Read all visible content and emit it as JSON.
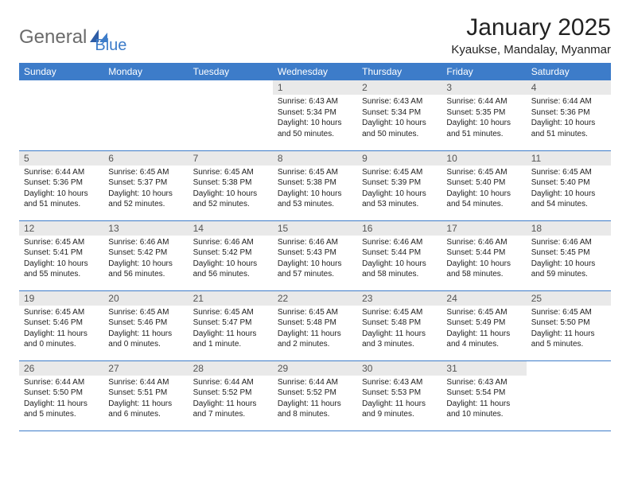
{
  "logo": {
    "part1": "General",
    "part2": "Blue"
  },
  "title": "January 2025",
  "location": "Kyaukse, Mandalay, Myanmar",
  "colors": {
    "header_bg": "#3d7cc9",
    "header_text": "#ffffff",
    "daynum_bg": "#e9e9e9",
    "row_border": "#3d7cc9",
    "logo_gray": "#6b6b6b",
    "logo_blue": "#3d7cc9"
  },
  "weekdays": [
    "Sunday",
    "Monday",
    "Tuesday",
    "Wednesday",
    "Thursday",
    "Friday",
    "Saturday"
  ],
  "weeks": [
    [
      {
        "n": "",
        "l1": "",
        "l2": "",
        "l3": "",
        "l4": ""
      },
      {
        "n": "",
        "l1": "",
        "l2": "",
        "l3": "",
        "l4": ""
      },
      {
        "n": "",
        "l1": "",
        "l2": "",
        "l3": "",
        "l4": ""
      },
      {
        "n": "1",
        "l1": "Sunrise: 6:43 AM",
        "l2": "Sunset: 5:34 PM",
        "l3": "Daylight: 10 hours",
        "l4": "and 50 minutes."
      },
      {
        "n": "2",
        "l1": "Sunrise: 6:43 AM",
        "l2": "Sunset: 5:34 PM",
        "l3": "Daylight: 10 hours",
        "l4": "and 50 minutes."
      },
      {
        "n": "3",
        "l1": "Sunrise: 6:44 AM",
        "l2": "Sunset: 5:35 PM",
        "l3": "Daylight: 10 hours",
        "l4": "and 51 minutes."
      },
      {
        "n": "4",
        "l1": "Sunrise: 6:44 AM",
        "l2": "Sunset: 5:36 PM",
        "l3": "Daylight: 10 hours",
        "l4": "and 51 minutes."
      }
    ],
    [
      {
        "n": "5",
        "l1": "Sunrise: 6:44 AM",
        "l2": "Sunset: 5:36 PM",
        "l3": "Daylight: 10 hours",
        "l4": "and 51 minutes."
      },
      {
        "n": "6",
        "l1": "Sunrise: 6:45 AM",
        "l2": "Sunset: 5:37 PM",
        "l3": "Daylight: 10 hours",
        "l4": "and 52 minutes."
      },
      {
        "n": "7",
        "l1": "Sunrise: 6:45 AM",
        "l2": "Sunset: 5:38 PM",
        "l3": "Daylight: 10 hours",
        "l4": "and 52 minutes."
      },
      {
        "n": "8",
        "l1": "Sunrise: 6:45 AM",
        "l2": "Sunset: 5:38 PM",
        "l3": "Daylight: 10 hours",
        "l4": "and 53 minutes."
      },
      {
        "n": "9",
        "l1": "Sunrise: 6:45 AM",
        "l2": "Sunset: 5:39 PM",
        "l3": "Daylight: 10 hours",
        "l4": "and 53 minutes."
      },
      {
        "n": "10",
        "l1": "Sunrise: 6:45 AM",
        "l2": "Sunset: 5:40 PM",
        "l3": "Daylight: 10 hours",
        "l4": "and 54 minutes."
      },
      {
        "n": "11",
        "l1": "Sunrise: 6:45 AM",
        "l2": "Sunset: 5:40 PM",
        "l3": "Daylight: 10 hours",
        "l4": "and 54 minutes."
      }
    ],
    [
      {
        "n": "12",
        "l1": "Sunrise: 6:45 AM",
        "l2": "Sunset: 5:41 PM",
        "l3": "Daylight: 10 hours",
        "l4": "and 55 minutes."
      },
      {
        "n": "13",
        "l1": "Sunrise: 6:46 AM",
        "l2": "Sunset: 5:42 PM",
        "l3": "Daylight: 10 hours",
        "l4": "and 56 minutes."
      },
      {
        "n": "14",
        "l1": "Sunrise: 6:46 AM",
        "l2": "Sunset: 5:42 PM",
        "l3": "Daylight: 10 hours",
        "l4": "and 56 minutes."
      },
      {
        "n": "15",
        "l1": "Sunrise: 6:46 AM",
        "l2": "Sunset: 5:43 PM",
        "l3": "Daylight: 10 hours",
        "l4": "and 57 minutes."
      },
      {
        "n": "16",
        "l1": "Sunrise: 6:46 AM",
        "l2": "Sunset: 5:44 PM",
        "l3": "Daylight: 10 hours",
        "l4": "and 58 minutes."
      },
      {
        "n": "17",
        "l1": "Sunrise: 6:46 AM",
        "l2": "Sunset: 5:44 PM",
        "l3": "Daylight: 10 hours",
        "l4": "and 58 minutes."
      },
      {
        "n": "18",
        "l1": "Sunrise: 6:46 AM",
        "l2": "Sunset: 5:45 PM",
        "l3": "Daylight: 10 hours",
        "l4": "and 59 minutes."
      }
    ],
    [
      {
        "n": "19",
        "l1": "Sunrise: 6:45 AM",
        "l2": "Sunset: 5:46 PM",
        "l3": "Daylight: 11 hours",
        "l4": "and 0 minutes."
      },
      {
        "n": "20",
        "l1": "Sunrise: 6:45 AM",
        "l2": "Sunset: 5:46 PM",
        "l3": "Daylight: 11 hours",
        "l4": "and 0 minutes."
      },
      {
        "n": "21",
        "l1": "Sunrise: 6:45 AM",
        "l2": "Sunset: 5:47 PM",
        "l3": "Daylight: 11 hours",
        "l4": "and 1 minute."
      },
      {
        "n": "22",
        "l1": "Sunrise: 6:45 AM",
        "l2": "Sunset: 5:48 PM",
        "l3": "Daylight: 11 hours",
        "l4": "and 2 minutes."
      },
      {
        "n": "23",
        "l1": "Sunrise: 6:45 AM",
        "l2": "Sunset: 5:48 PM",
        "l3": "Daylight: 11 hours",
        "l4": "and 3 minutes."
      },
      {
        "n": "24",
        "l1": "Sunrise: 6:45 AM",
        "l2": "Sunset: 5:49 PM",
        "l3": "Daylight: 11 hours",
        "l4": "and 4 minutes."
      },
      {
        "n": "25",
        "l1": "Sunrise: 6:45 AM",
        "l2": "Sunset: 5:50 PM",
        "l3": "Daylight: 11 hours",
        "l4": "and 5 minutes."
      }
    ],
    [
      {
        "n": "26",
        "l1": "Sunrise: 6:44 AM",
        "l2": "Sunset: 5:50 PM",
        "l3": "Daylight: 11 hours",
        "l4": "and 5 minutes."
      },
      {
        "n": "27",
        "l1": "Sunrise: 6:44 AM",
        "l2": "Sunset: 5:51 PM",
        "l3": "Daylight: 11 hours",
        "l4": "and 6 minutes."
      },
      {
        "n": "28",
        "l1": "Sunrise: 6:44 AM",
        "l2": "Sunset: 5:52 PM",
        "l3": "Daylight: 11 hours",
        "l4": "and 7 minutes."
      },
      {
        "n": "29",
        "l1": "Sunrise: 6:44 AM",
        "l2": "Sunset: 5:52 PM",
        "l3": "Daylight: 11 hours",
        "l4": "and 8 minutes."
      },
      {
        "n": "30",
        "l1": "Sunrise: 6:43 AM",
        "l2": "Sunset: 5:53 PM",
        "l3": "Daylight: 11 hours",
        "l4": "and 9 minutes."
      },
      {
        "n": "31",
        "l1": "Sunrise: 6:43 AM",
        "l2": "Sunset: 5:54 PM",
        "l3": "Daylight: 11 hours",
        "l4": "and 10 minutes."
      },
      {
        "n": "",
        "l1": "",
        "l2": "",
        "l3": "",
        "l4": ""
      }
    ]
  ]
}
